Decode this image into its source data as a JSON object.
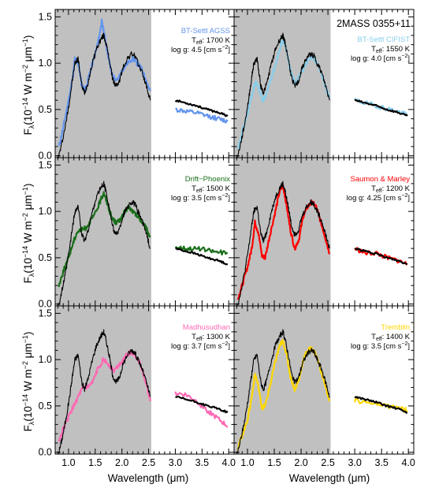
{
  "figure": {
    "xlabel": "Wavelength (μm)",
    "ylabel_parts": {
      "base": "F",
      "sub": "λ",
      "mid1": "(10",
      "sup1": "−14",
      "mid2": " W m",
      "sup2": "−2",
      "mid3": " μm",
      "sup3": "−1",
      "end": ")"
    },
    "target_label": "2MASS 0355+11",
    "x_ticks": [
      "1.0",
      "1.5",
      "2.0",
      "2.5",
      "3.0",
      "3.5",
      "4.0"
    ],
    "y_ticks": [
      "0.0",
      "0.5",
      "1.0",
      "1.5"
    ],
    "xlim": [
      0.75,
      4.1
    ],
    "ylim": [
      -0.02,
      1.58
    ],
    "shaded_region_um": [
      0.75,
      2.55
    ],
    "observed_color": "#000000",
    "shade_color": "#c0c0c0"
  },
  "chart_data": [
    {
      "type": "line",
      "panel": "BT-Settl AGSS",
      "label_color": "#6495ed",
      "annotation": {
        "model": "BT-Settl AGSS",
        "teff_value": ": 1700 K",
        "logg": "log g: 4.5 [cm s",
        "logg_sup": "−2",
        "logg_end": "]"
      },
      "series": [
        {
          "name": "BT-Settl AGSS",
          "color": "#6495ed",
          "x": [
            0.82,
            0.9,
            1.0,
            1.08,
            1.12,
            1.2,
            1.25,
            1.32,
            1.4,
            1.5,
            1.58,
            1.62,
            1.66,
            1.72,
            1.8,
            1.9,
            2.0,
            2.1,
            2.2,
            2.28,
            2.36,
            2.45,
            2.53
          ],
          "y": [
            0.1,
            0.3,
            0.6,
            0.85,
            1.05,
            0.95,
            0.75,
            0.72,
            0.9,
            1.1,
            1.3,
            1.45,
            1.35,
            1.15,
            0.9,
            0.8,
            0.92,
            1.0,
            1.05,
            1.0,
            0.95,
            0.82,
            0.7
          ]
        },
        {
          "name": "BT-Settl AGSS (3-4 μm)",
          "color": "#6495ed",
          "x": [
            3.0,
            3.2,
            3.4,
            3.6,
            3.8,
            3.98
          ],
          "y": [
            0.5,
            0.48,
            0.46,
            0.43,
            0.4,
            0.37
          ]
        }
      ]
    },
    {
      "type": "line",
      "panel": "BT-Settl CIFIST",
      "label_color": "#87ceeb",
      "annotation": {
        "model": "BT-Settl CIFIST",
        "teff_value": ": 1550 K",
        "logg": "log g: 4.0 [cm s",
        "logg_sup": "−2",
        "logg_end": "]"
      },
      "series": [
        {
          "name": "BT-Settl CIFIST",
          "color": "#87ceeb",
          "x": [
            0.82,
            0.9,
            1.0,
            1.08,
            1.15,
            1.22,
            1.28,
            1.35,
            1.45,
            1.55,
            1.62,
            1.68,
            1.74,
            1.82,
            1.9,
            2.0,
            2.1,
            2.2,
            2.28,
            2.36,
            2.45,
            2.53
          ],
          "y": [
            0.05,
            0.25,
            0.45,
            0.65,
            0.8,
            0.72,
            0.6,
            0.65,
            0.85,
            1.05,
            1.2,
            1.25,
            1.1,
            0.88,
            0.78,
            0.9,
            1.0,
            1.08,
            1.02,
            0.92,
            0.75,
            0.62
          ]
        },
        {
          "name": "BT-Settl CIFIST (3-4 μm)",
          "color": "#87ceeb",
          "x": [
            3.0,
            3.2,
            3.4,
            3.6,
            3.8,
            3.98
          ],
          "y": [
            0.6,
            0.57,
            0.54,
            0.51,
            0.48,
            0.44
          ]
        }
      ]
    },
    {
      "type": "line",
      "panel": "Drift-Phoenix",
      "label_color": "#1a6e1a",
      "annotation": {
        "model": "Drift−Phoenix",
        "teff_value": ": 1500 K",
        "logg": "log g: 3.5 [cm s",
        "logg_sup": "−2",
        "logg_end": "]"
      },
      "series": [
        {
          "name": "Drift−Phoenix",
          "color": "#1a6e1a",
          "x": [
            0.82,
            0.9,
            1.0,
            1.08,
            1.16,
            1.24,
            1.32,
            1.42,
            1.52,
            1.6,
            1.66,
            1.72,
            1.8,
            1.88,
            1.96,
            2.04,
            2.12,
            2.2,
            2.28,
            2.36,
            2.45,
            2.53
          ],
          "y": [
            0.2,
            0.35,
            0.5,
            0.65,
            0.78,
            0.8,
            0.82,
            0.9,
            1.0,
            1.12,
            1.2,
            1.1,
            0.95,
            0.88,
            0.9,
            0.98,
            1.05,
            1.0,
            0.95,
            0.9,
            0.82,
            0.72
          ]
        },
        {
          "name": "Drift−Phoenix (3-4 μm)",
          "color": "#1a6e1a",
          "x": [
            3.0,
            3.2,
            3.4,
            3.6,
            3.8,
            3.98
          ],
          "y": [
            0.62,
            0.6,
            0.6,
            0.58,
            0.56,
            0.55
          ]
        }
      ]
    },
    {
      "type": "line",
      "panel": "Saumon & Marley",
      "label_color": "#ff0000",
      "annotation": {
        "model": "Saumon & Marley",
        "teff_value": ": 1200 K",
        "logg": "log g: 4.25 [cm s",
        "logg_sup": "−2",
        "logg_end": "]"
      },
      "series": [
        {
          "name": "Saumon & Marley",
          "color": "#ff0000",
          "x": [
            0.82,
            0.9,
            1.0,
            1.08,
            1.14,
            1.2,
            1.27,
            1.33,
            1.42,
            1.52,
            1.6,
            1.66,
            1.72,
            1.8,
            1.88,
            1.96,
            2.04,
            2.12,
            2.2,
            2.28,
            2.36,
            2.45,
            2.53
          ],
          "y": [
            0.05,
            0.2,
            0.4,
            0.6,
            0.88,
            0.78,
            0.52,
            0.5,
            0.75,
            1.0,
            1.22,
            1.28,
            1.1,
            0.8,
            0.6,
            0.7,
            0.95,
            1.05,
            1.1,
            1.05,
            0.9,
            0.72,
            0.55
          ]
        },
        {
          "name": "Saumon & Marley (3-4 μm)",
          "color": "#ff0000",
          "x": [
            3.0,
            3.2,
            3.4,
            3.6,
            3.8,
            3.98
          ],
          "y": [
            0.6,
            0.55,
            0.55,
            0.5,
            0.47,
            0.43
          ]
        }
      ]
    },
    {
      "type": "line",
      "panel": "Madhusudhan",
      "label_color": "#ff69b4",
      "annotation": {
        "model": "Madhusudhan",
        "teff_value": ": 1300 K",
        "logg": "log g: 3.7 [cm s",
        "logg_sup": "−2",
        "logg_end": "]"
      },
      "series": [
        {
          "name": "Madhusudhan",
          "color": "#ff69b4",
          "x": [
            0.82,
            0.9,
            1.0,
            1.1,
            1.2,
            1.28,
            1.36,
            1.45,
            1.55,
            1.65,
            1.75,
            1.85,
            1.95,
            2.05,
            2.15,
            2.25,
            2.35,
            2.45,
            2.53
          ],
          "y": [
            0.12,
            0.25,
            0.38,
            0.5,
            0.62,
            0.7,
            0.7,
            0.75,
            0.9,
            1.0,
            0.95,
            0.88,
            0.95,
            1.02,
            1.08,
            1.05,
            0.95,
            0.75,
            0.55
          ]
        },
        {
          "name": "Madhusudhan (3-4 μm)",
          "color": "#ff69b4",
          "x": [
            3.0,
            3.2,
            3.4,
            3.6,
            3.8,
            3.98
          ],
          "y": [
            0.64,
            0.62,
            0.55,
            0.45,
            0.36,
            0.28
          ]
        }
      ]
    },
    {
      "type": "line",
      "panel": "Tremblin",
      "label_color": "#ffd700",
      "annotation": {
        "model": "Tremblin",
        "teff_value": ": 1400 K",
        "logg": "log g: 3.5 [cm s",
        "logg_sup": "−2",
        "logg_end": "]"
      },
      "series": [
        {
          "name": "Tremblin",
          "color": "#ffd700",
          "x": [
            0.82,
            0.9,
            1.0,
            1.08,
            1.14,
            1.2,
            1.27,
            1.33,
            1.42,
            1.52,
            1.6,
            1.66,
            1.72,
            1.8,
            1.88,
            1.96,
            2.04,
            2.12,
            2.2,
            2.28,
            2.36,
            2.45,
            2.53
          ],
          "y": [
            0.05,
            0.18,
            0.35,
            0.6,
            0.85,
            0.72,
            0.48,
            0.5,
            0.72,
            0.98,
            1.15,
            1.2,
            1.08,
            0.82,
            0.68,
            0.78,
            1.0,
            1.1,
            1.12,
            1.05,
            0.9,
            0.72,
            0.55
          ]
        },
        {
          "name": "Tremblin (3-4 μm)",
          "color": "#ffd700",
          "x": [
            3.0,
            3.2,
            3.4,
            3.6,
            3.8,
            3.98
          ],
          "y": [
            0.56,
            0.54,
            0.52,
            0.5,
            0.48,
            0.45
          ]
        }
      ]
    }
  ],
  "observed": {
    "name": "2MASS 0355+11",
    "x": [
      0.82,
      0.88,
      0.95,
      1.02,
      1.08,
      1.12,
      1.18,
      1.25,
      1.3,
      1.36,
      1.44,
      1.52,
      1.6,
      1.66,
      1.7,
      1.76,
      1.82,
      1.88,
      1.95,
      2.02,
      2.1,
      2.18,
      2.24,
      2.3,
      2.38,
      2.46,
      2.53
    ],
    "y": [
      0.0,
      0.15,
      0.35,
      0.6,
      0.85,
      1.0,
      1.05,
      0.75,
      0.68,
      0.78,
      0.98,
      1.15,
      1.25,
      1.3,
      1.22,
      1.05,
      0.85,
      0.75,
      0.8,
      0.95,
      1.05,
      1.1,
      1.08,
      1.0,
      0.9,
      0.75,
      0.6
    ],
    "x_lband": [
      3.0,
      3.2,
      3.4,
      3.6,
      3.8,
      3.98
    ],
    "y_lband": [
      0.6,
      0.57,
      0.54,
      0.5,
      0.47,
      0.43
    ]
  }
}
